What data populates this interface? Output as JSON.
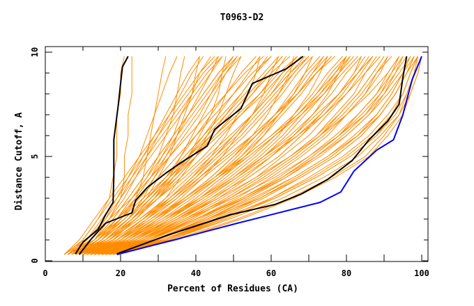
{
  "chart_data": {
    "type": "line",
    "title": "T0963-D2",
    "xlabel": "Percent of Residues (CA)",
    "ylabel": "Distance Cutoff, A",
    "xlim": [
      0,
      100
    ],
    "ylim": [
      0,
      10
    ],
    "x_ticks": [
      0,
      20,
      40,
      60,
      80,
      100
    ],
    "x_tick_labels": [
      "0",
      "20",
      "40",
      "60",
      "80",
      "100"
    ],
    "x_minor_ticks": [
      10,
      30,
      50,
      70,
      90
    ],
    "y_ticks": [
      0,
      5,
      10
    ],
    "y_tick_labels": [
      "0",
      "5",
      "10"
    ],
    "y_minor_ticks": [
      1,
      2,
      3,
      4,
      6,
      7,
      8,
      9
    ],
    "grid": false,
    "legend": "none",
    "colors": {
      "models": "#ff8c00",
      "highlight": "#000000",
      "best": "#0000ff",
      "frame": "#000000"
    },
    "distance_grid": [
      0.3,
      1,
      2,
      3,
      4,
      5,
      6,
      7,
      8,
      9,
      9.8
    ],
    "series": [
      {
        "name": "highlight-1",
        "color": "#000000",
        "points": [
          [
            8,
            0.33
          ],
          [
            10,
            0.9
          ],
          [
            14,
            1.5
          ],
          [
            16,
            2.2
          ],
          [
            18,
            2.8
          ],
          [
            18.2,
            4
          ],
          [
            18.2,
            5.8
          ],
          [
            19.4,
            7.5
          ],
          [
            20,
            8.5
          ],
          [
            20.5,
            9.3
          ],
          [
            22,
            9.8
          ]
        ]
      },
      {
        "name": "highlight-2",
        "color": "#000000",
        "points": [
          [
            9,
            0.3
          ],
          [
            12,
            1
          ],
          [
            16,
            1.8
          ],
          [
            23,
            2.3
          ],
          [
            24,
            2.9
          ],
          [
            27,
            3.5
          ],
          [
            32,
            4.2
          ],
          [
            36,
            4.7
          ],
          [
            43,
            5.5
          ],
          [
            45,
            6.3
          ],
          [
            52,
            7.3
          ],
          [
            55,
            8.5
          ],
          [
            64,
            9.2
          ],
          [
            68.5,
            9.8
          ]
        ]
      },
      {
        "name": "highlight-3",
        "color": "#000000",
        "points": [
          [
            19,
            0.33
          ],
          [
            32,
            1.2
          ],
          [
            49,
            2.2
          ],
          [
            61,
            2.7
          ],
          [
            68,
            3.2
          ],
          [
            75,
            3.9
          ],
          [
            81.5,
            4.8
          ],
          [
            86,
            5.8
          ],
          [
            91,
            6.7
          ],
          [
            94,
            7.5
          ],
          [
            95,
            8.8
          ],
          [
            96,
            9.8
          ]
        ]
      },
      {
        "name": "best",
        "color": "#0000ff",
        "points": [
          [
            19,
            0.3
          ],
          [
            32,
            0.9
          ],
          [
            51,
            1.8
          ],
          [
            73,
            2.8
          ],
          [
            78.5,
            3.3
          ],
          [
            82,
            4.3
          ],
          [
            88,
            5.3
          ],
          [
            92.5,
            5.8
          ],
          [
            95,
            7.0
          ],
          [
            96,
            7.7
          ],
          [
            97.5,
            8.7
          ],
          [
            100,
            9.8
          ]
        ]
      }
    ],
    "models": [
      [
        6,
        12,
        17,
        20,
        21,
        21,
        22,
        22,
        23,
        23,
        23
      ],
      [
        5,
        10,
        14,
        17,
        18,
        19,
        19,
        19,
        20,
        20,
        21
      ],
      [
        7,
        14,
        20,
        24,
        26,
        27,
        28,
        29,
        30,
        31,
        32
      ],
      [
        6,
        13,
        19,
        23,
        27,
        30,
        32,
        34,
        35,
        36,
        37
      ],
      [
        8,
        15,
        22,
        27,
        30,
        33,
        35,
        37,
        39,
        40,
        41
      ],
      [
        7,
        16,
        24,
        30,
        34,
        38,
        41,
        44,
        46,
        47,
        48
      ],
      [
        9,
        18,
        26,
        32,
        36,
        40,
        43,
        46,
        48,
        50,
        52
      ],
      [
        8,
        17,
        25,
        33,
        39,
        44,
        48,
        51,
        54,
        56,
        57
      ],
      [
        10,
        20,
        29,
        36,
        42,
        47,
        51,
        55,
        58,
        60,
        62
      ],
      [
        9,
        19,
        28,
        37,
        44,
        50,
        55,
        59,
        62,
        65,
        66
      ],
      [
        11,
        22,
        32,
        40,
        47,
        53,
        58,
        62,
        66,
        69,
        71
      ],
      [
        10,
        21,
        31,
        41,
        49,
        56,
        62,
        66,
        70,
        73,
        75
      ],
      [
        12,
        24,
        35,
        45,
        53,
        60,
        66,
        71,
        75,
        78,
        80
      ],
      [
        11,
        23,
        34,
        44,
        54,
        62,
        68,
        73,
        78,
        82,
        84
      ],
      [
        13,
        26,
        38,
        48,
        57,
        65,
        72,
        77,
        82,
        85,
        88
      ],
      [
        12,
        25,
        37,
        49,
        59,
        67,
        74,
        80,
        85,
        89,
        91
      ],
      [
        14,
        28,
        41,
        52,
        62,
        70,
        77,
        83,
        88,
        92,
        94
      ],
      [
        13,
        27,
        40,
        53,
        64,
        73,
        80,
        86,
        90,
        93,
        95
      ],
      [
        15,
        30,
        44,
        56,
        66,
        75,
        82,
        88,
        92,
        95,
        97
      ],
      [
        14,
        29,
        43,
        57,
        68,
        77,
        84,
        89,
        93,
        96,
        98
      ],
      [
        16,
        32,
        47,
        60,
        71,
        80,
        87,
        92,
        95,
        97,
        99
      ],
      [
        15,
        31,
        46,
        61,
        72,
        81,
        88,
        93,
        96,
        98,
        99
      ],
      [
        17,
        33,
        49,
        63,
        74,
        83,
        89,
        94,
        96,
        98,
        100
      ],
      [
        16,
        34,
        51,
        65,
        76,
        85,
        90,
        94,
        97,
        99,
        100
      ],
      [
        18,
        35,
        52,
        66,
        77,
        86,
        91,
        95,
        97,
        99,
        100
      ],
      [
        10,
        18,
        24,
        30,
        36,
        42,
        47,
        52,
        57,
        61,
        64
      ],
      [
        9,
        17,
        23,
        28,
        33,
        38,
        43,
        48,
        53,
        58,
        62
      ],
      [
        8,
        15,
        21,
        27,
        32,
        37,
        42,
        47,
        52,
        56,
        59
      ],
      [
        11,
        19,
        26,
        33,
        40,
        46,
        52,
        57,
        62,
        66,
        70
      ],
      [
        12,
        21,
        29,
        37,
        45,
        52,
        58,
        63,
        68,
        72,
        76
      ],
      [
        7,
        13,
        18,
        22,
        26,
        30,
        34,
        38,
        42,
        46,
        50
      ],
      [
        6,
        11,
        16,
        20,
        24,
        28,
        32,
        36,
        40,
        44,
        47
      ],
      [
        9,
        16,
        22,
        26,
        29,
        32,
        35,
        38,
        41,
        44,
        46
      ],
      [
        10,
        17,
        24,
        29,
        33,
        36,
        39,
        42,
        45,
        48,
        51
      ],
      [
        11,
        20,
        28,
        35,
        41,
        47,
        53,
        58,
        63,
        67,
        71
      ],
      [
        12,
        22,
        31,
        39,
        46,
        52,
        57,
        62,
        67,
        71,
        74
      ],
      [
        13,
        24,
        34,
        43,
        51,
        58,
        64,
        69,
        74,
        78,
        81
      ],
      [
        14,
        26,
        37,
        47,
        56,
        63,
        70,
        75,
        80,
        84,
        87
      ],
      [
        15,
        28,
        40,
        51,
        60,
        68,
        75,
        80,
        85,
        88,
        91
      ],
      [
        8,
        14,
        19,
        23,
        27,
        31,
        35,
        39,
        43,
        47,
        51
      ],
      [
        7,
        12,
        17,
        21,
        24,
        27,
        30,
        33,
        36,
        39,
        42
      ],
      [
        6,
        12,
        16,
        19,
        22,
        25,
        27,
        29,
        31,
        33,
        35
      ],
      [
        9,
        15,
        20,
        24,
        28,
        31,
        34,
        36,
        39,
        41,
        44
      ],
      [
        10,
        17,
        23,
        28,
        33,
        38,
        42,
        46,
        50,
        54,
        57
      ],
      [
        11,
        19,
        27,
        34,
        40,
        45,
        50,
        55,
        59,
        63,
        67
      ],
      [
        12,
        21,
        30,
        38,
        45,
        51,
        56,
        61,
        65,
        69,
        73
      ],
      [
        13,
        23,
        33,
        42,
        50,
        57,
        63,
        68,
        73,
        77,
        80
      ],
      [
        14,
        25,
        36,
        46,
        54,
        62,
        68,
        74,
        79,
        83,
        86
      ],
      [
        15,
        27,
        39,
        49,
        58,
        66,
        73,
        78,
        83,
        87,
        90
      ],
      [
        16,
        29,
        42,
        53,
        63,
        71,
        78,
        83,
        88,
        91,
        94
      ],
      [
        17,
        31,
        45,
        57,
        67,
        76,
        83,
        88,
        92,
        95,
        97
      ],
      [
        18,
        33,
        48,
        61,
        72,
        81,
        88,
        92,
        95,
        97,
        99
      ],
      [
        8,
        16,
        23,
        29,
        35,
        40,
        45,
        50,
        55,
        60,
        65
      ],
      [
        9,
        17,
        25,
        32,
        38,
        44,
        50,
        55,
        60,
        65,
        69
      ],
      [
        10,
        19,
        27,
        35,
        42,
        49,
        55,
        61,
        66,
        70,
        74
      ],
      [
        11,
        21,
        30,
        38,
        46,
        53,
        60,
        66,
        71,
        75,
        79
      ],
      [
        12,
        23,
        33,
        42,
        50,
        58,
        65,
        71,
        76,
        80,
        84
      ],
      [
        7,
        14,
        21,
        27,
        33,
        39,
        45,
        51,
        57,
        62,
        67
      ],
      [
        6,
        13,
        20,
        26,
        32,
        38,
        44,
        49,
        54,
        59,
        63
      ],
      [
        5,
        11,
        17,
        23,
        28,
        33,
        38,
        43,
        48,
        53,
        58
      ],
      [
        8,
        15,
        22,
        28,
        34,
        40,
        46,
        52,
        58,
        63,
        68
      ],
      [
        9,
        18,
        26,
        34,
        41,
        48,
        55,
        61,
        67,
        72,
        76
      ],
      [
        10,
        20,
        29,
        38,
        46,
        54,
        61,
        68,
        74,
        79,
        83
      ],
      [
        11,
        22,
        32,
        42,
        51,
        59,
        67,
        74,
        80,
        85,
        89
      ],
      [
        12,
        24,
        35,
        46,
        56,
        65,
        73,
        80,
        86,
        91,
        94
      ],
      [
        13,
        26,
        38,
        50,
        61,
        70,
        78,
        85,
        90,
        94,
        97
      ],
      [
        14,
        27,
        40,
        52,
        63,
        72,
        80,
        86,
        91,
        95,
        98
      ],
      [
        15,
        29,
        43,
        55,
        66,
        75,
        83,
        89,
        93,
        96,
        99
      ],
      [
        7,
        13,
        19,
        25,
        30,
        35,
        40,
        45,
        50,
        55,
        60
      ],
      [
        8,
        14,
        21,
        27,
        33,
        39,
        44,
        49,
        54,
        59,
        63
      ],
      [
        9,
        16,
        23,
        30,
        37,
        43,
        49,
        55,
        60,
        65,
        70
      ],
      [
        10,
        18,
        26,
        34,
        41,
        48,
        55,
        61,
        67,
        72,
        77
      ],
      [
        11,
        20,
        29,
        37,
        45,
        53,
        60,
        67,
        73,
        78,
        82
      ],
      [
        12,
        22,
        32,
        41,
        50,
        58,
        66,
        72,
        78,
        83,
        87
      ],
      [
        6,
        10,
        14,
        18,
        22,
        26,
        30,
        34,
        38,
        42,
        46
      ],
      [
        5,
        9,
        13,
        17,
        21,
        25,
        29,
        33,
        37,
        41,
        45
      ],
      [
        7,
        11,
        15,
        19,
        23,
        27,
        31,
        35,
        39,
        43,
        47
      ],
      [
        8,
        13,
        18,
        22,
        26,
        30,
        34,
        38,
        42,
        46,
        50
      ],
      [
        9,
        14,
        19,
        24,
        28,
        32,
        36,
        40,
        44,
        48,
        52
      ],
      [
        10,
        16,
        22,
        27,
        32,
        36,
        40,
        44,
        48,
        52,
        56
      ],
      [
        11,
        18,
        24,
        30,
        35,
        40,
        45,
        50,
        55,
        59,
        63
      ],
      [
        12,
        20,
        27,
        33,
        39,
        45,
        51,
        56,
        61,
        66,
        70
      ],
      [
        13,
        22,
        30,
        37,
        44,
        50,
        56,
        62,
        67,
        72,
        76
      ],
      [
        14,
        24,
        33,
        41,
        48,
        55,
        61,
        67,
        72,
        77,
        81
      ],
      [
        15,
        26,
        36,
        45,
        53,
        60,
        67,
        73,
        78,
        83,
        87
      ],
      [
        16,
        28,
        39,
        49,
        58,
        66,
        73,
        79,
        84,
        88,
        92
      ],
      [
        17,
        30,
        42,
        53,
        63,
        71,
        78,
        84,
        89,
        93,
        96
      ],
      [
        18,
        32,
        45,
        57,
        67,
        76,
        83,
        89,
        93,
        96,
        99
      ],
      [
        19,
        33,
        47,
        60,
        70,
        79,
        86,
        91,
        95,
        97,
        99
      ],
      [
        8,
        13,
        17,
        20,
        23,
        26,
        29,
        32,
        35,
        38,
        41
      ],
      [
        9,
        15,
        20,
        25,
        29,
        33,
        37,
        41,
        44,
        47,
        50
      ],
      [
        10,
        17,
        23,
        29,
        34,
        39,
        44,
        48,
        52,
        56,
        60
      ],
      [
        11,
        19,
        26,
        33,
        39,
        45,
        50,
        55,
        60,
        64,
        68
      ],
      [
        12,
        21,
        29,
        37,
        44,
        50,
        56,
        62,
        67,
        71,
        75
      ],
      [
        13,
        23,
        32,
        40,
        47,
        54,
        61,
        67,
        72,
        76,
        80
      ],
      [
        14,
        25,
        35,
        44,
        52,
        60,
        67,
        73,
        78,
        82,
        85
      ],
      [
        15,
        27,
        38,
        48,
        57,
        65,
        72,
        78,
        83,
        87,
        90
      ],
      [
        16,
        30,
        43,
        54,
        64,
        72,
        79,
        85,
        89,
        92,
        95
      ],
      [
        17,
        32,
        46,
        58,
        68,
        77,
        84,
        89,
        93,
        96,
        98
      ]
    ]
  }
}
